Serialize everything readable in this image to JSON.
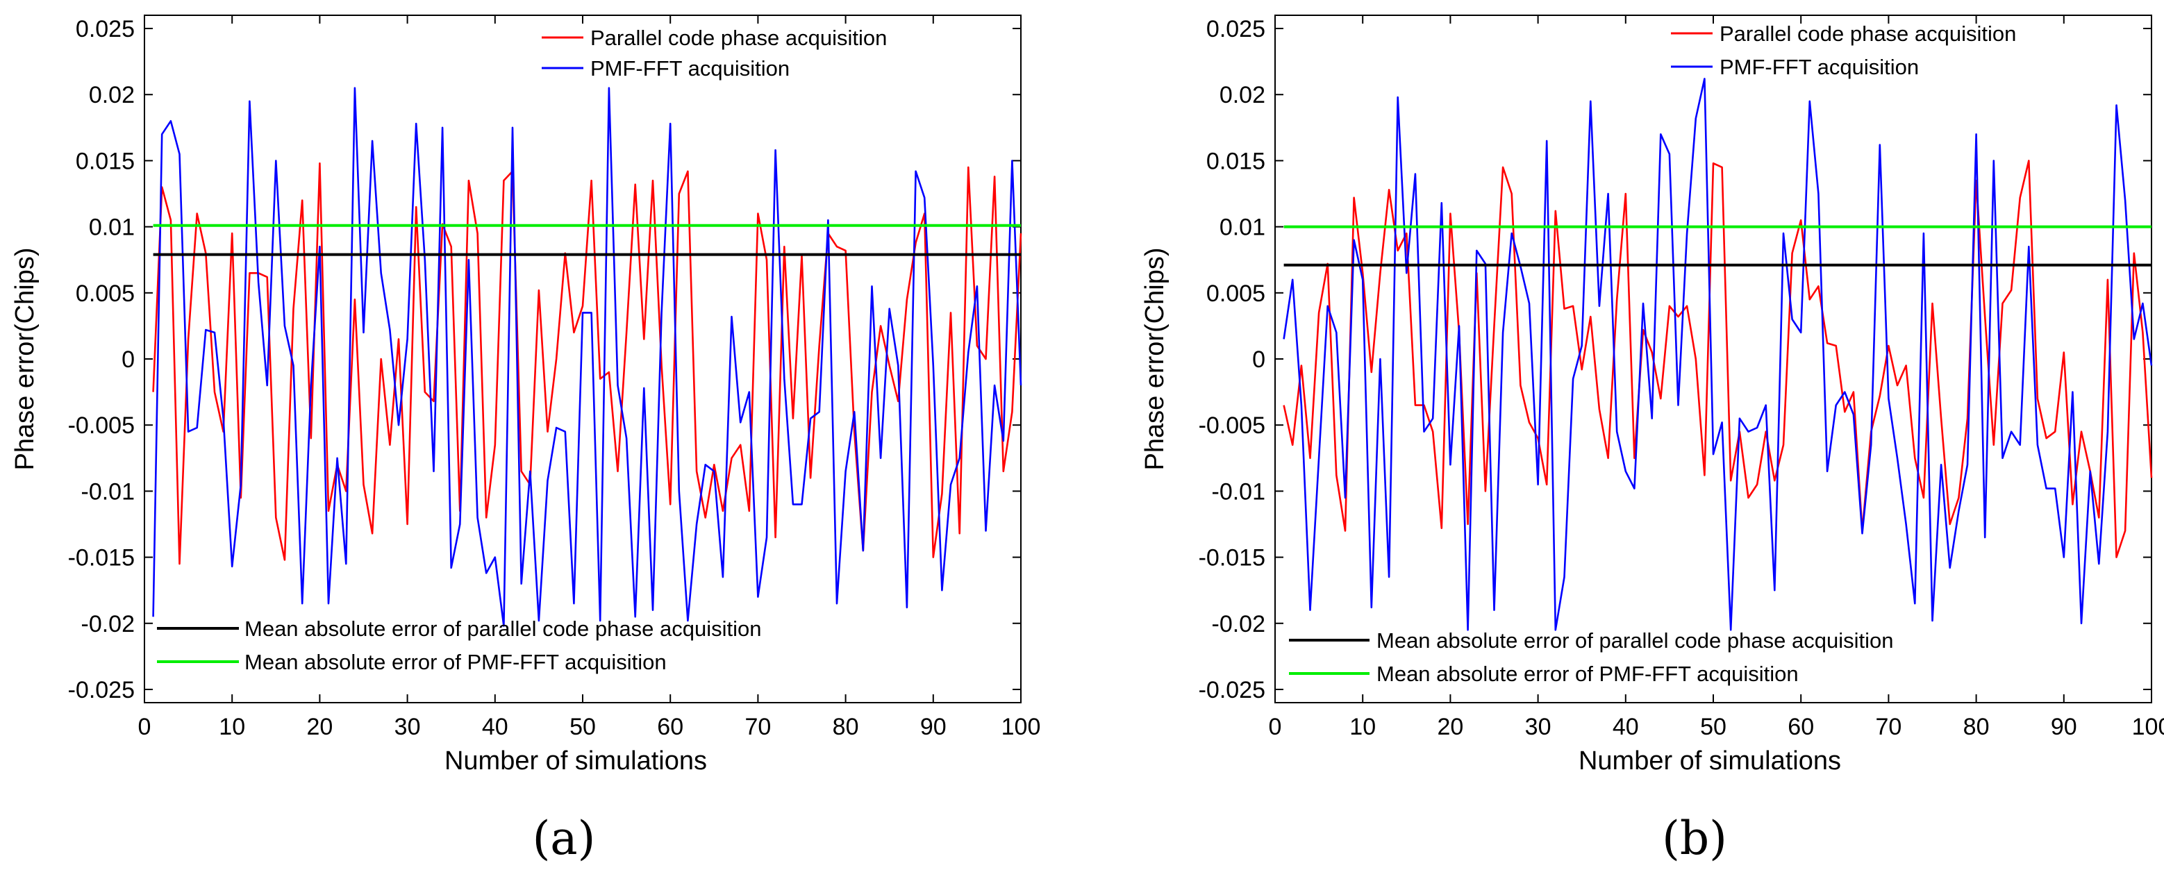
{
  "chart_data": [
    {
      "type": "line",
      "panel_label": "(a)",
      "xlabel": "Number of simulations",
      "ylabel": "Phase error(Chips)",
      "xlim": [
        0,
        100
      ],
      "ylim": [
        -0.026,
        0.026
      ],
      "x_ticks": [
        0,
        10,
        20,
        30,
        40,
        50,
        60,
        70,
        80,
        90,
        100
      ],
      "x_tick_labels": [
        "0",
        "10",
        "20",
        "30",
        "40",
        "50",
        "60",
        "70",
        "80",
        "90",
        "100"
      ],
      "y_ticks": [
        -0.025,
        -0.02,
        -0.015,
        -0.01,
        -0.005,
        0,
        0.005,
        0.01,
        0.015,
        0.02,
        0.025
      ],
      "y_tick_labels": [
        "-0.025",
        "-0.02",
        "-0.015",
        "-0.01",
        "-0.005",
        "0",
        "0.005",
        "0.01",
        "0.015",
        "0.02",
        "0.025"
      ],
      "series": [
        {
          "name": "Parallel code phase acquisition",
          "color": "#ff0000",
          "values": [
            -0.0025,
            0.013,
            0.0105,
            -0.0155,
            0.0015,
            0.011,
            0.008,
            -0.0025,
            -0.0055,
            0.0095,
            -0.0105,
            0.0065,
            0.0065,
            0.0062,
            -0.012,
            -0.0152,
            0.0038,
            0.012,
            -0.006,
            0.0148,
            -0.0115,
            -0.008,
            -0.01,
            0.0045,
            -0.0095,
            -0.0132,
            0.0,
            -0.0065,
            0.0015,
            -0.0125,
            0.0115,
            -0.0025,
            -0.0032,
            0.0102,
            0.0085,
            -0.0115,
            0.0135,
            0.0095,
            -0.012,
            -0.0065,
            0.0135,
            0.0142,
            -0.0085,
            -0.0095,
            0.0052,
            -0.0055,
            0.0,
            0.008,
            0.002,
            0.004,
            0.0135,
            -0.0015,
            -0.001,
            -0.0085,
            0.002,
            0.0132,
            0.0015,
            0.0135,
            -0.0005,
            -0.011,
            0.0125,
            0.0142,
            -0.0085,
            -0.012,
            -0.008,
            -0.0115,
            -0.0075,
            -0.0065,
            -0.0115,
            0.011,
            0.0075,
            -0.0135,
            0.0085,
            -0.0045,
            0.0078,
            -0.009,
            0.001,
            0.0095,
            0.0085,
            0.0082,
            -0.0055,
            -0.0145,
            -0.0025,
            0.0025,
            -0.0005,
            -0.0032,
            0.0045,
            0.0088,
            0.011,
            -0.015,
            -0.0102,
            0.0035,
            -0.0132,
            0.0145,
            0.001,
            0.0,
            0.0138,
            -0.0085,
            -0.004,
            0.0095
          ]
        },
        {
          "name": "PMF-FFT acquisition",
          "color": "#0000ff",
          "values": [
            -0.0195,
            0.017,
            0.018,
            0.0155,
            -0.0055,
            -0.0052,
            0.0022,
            0.002,
            -0.0045,
            -0.0157,
            -0.0095,
            0.0195,
            0.0058,
            -0.002,
            0.015,
            0.0025,
            -0.0005,
            -0.0185,
            -0.002,
            0.0085,
            -0.0185,
            -0.0075,
            -0.0155,
            0.0205,
            0.002,
            0.0165,
            0.0065,
            0.0022,
            -0.005,
            0.0015,
            0.0178,
            0.0075,
            -0.0085,
            0.0175,
            -0.0158,
            -0.0125,
            0.0075,
            -0.012,
            -0.0162,
            -0.015,
            -0.0202,
            0.0175,
            -0.017,
            -0.0085,
            -0.0198,
            -0.0092,
            -0.0052,
            -0.0055,
            -0.0185,
            0.0035,
            0.0035,
            -0.0198,
            0.0205,
            -0.002,
            -0.006,
            -0.0195,
            -0.0022,
            -0.019,
            0.0035,
            0.0178,
            -0.01,
            -0.0198,
            -0.0125,
            -0.008,
            -0.0085,
            -0.0165,
            0.0032,
            -0.0048,
            -0.0025,
            -0.018,
            -0.0135,
            0.0158,
            -0.0015,
            -0.011,
            -0.011,
            -0.0045,
            -0.004,
            0.0105,
            -0.0185,
            -0.0085,
            -0.004,
            -0.0145,
            0.0055,
            -0.0075,
            0.0038,
            -0.0005,
            -0.0188,
            0.0142,
            0.0122,
            -0.0005,
            -0.0175,
            -0.0095,
            -0.0075,
            0.0005,
            0.0055,
            -0.013,
            -0.002,
            -0.0062,
            0.015,
            -0.002
          ]
        },
        {
          "name": "Mean absolute error of parallel code phase acquisition",
          "color": "#000000",
          "values": [
            0.0079,
            0.0079
          ]
        },
        {
          "name": "Mean absolute error of PMF-FFT acquisition",
          "color": "#00ee00",
          "values": [
            0.0101,
            0.0101
          ]
        }
      ]
    },
    {
      "type": "line",
      "panel_label": "(b)",
      "xlabel": "Number of simulations",
      "ylabel": "Phase error(Chips)",
      "xlim": [
        0,
        100
      ],
      "ylim": [
        -0.026,
        0.026
      ],
      "x_ticks": [
        0,
        10,
        20,
        30,
        40,
        50,
        60,
        70,
        80,
        90,
        100
      ],
      "x_tick_labels": [
        "0",
        "10",
        "20",
        "30",
        "40",
        "50",
        "60",
        "70",
        "80",
        "90",
        "100"
      ],
      "y_ticks": [
        -0.025,
        -0.02,
        -0.015,
        -0.01,
        -0.005,
        0,
        0.005,
        0.01,
        0.015,
        0.02,
        0.025
      ],
      "y_tick_labels": [
        "-0.025",
        "-0.02",
        "-0.015",
        "-0.01",
        "-0.005",
        "0",
        "0.005",
        "0.01",
        "0.015",
        "0.02",
        "0.025"
      ],
      "series": [
        {
          "name": "Parallel code phase acquisition",
          "color": "#ff0000",
          "values": [
            -0.0035,
            -0.0065,
            -0.0005,
            -0.0075,
            0.0035,
            0.0072,
            -0.0088,
            -0.013,
            0.0122,
            0.0065,
            -0.001,
            0.0065,
            0.0128,
            0.0082,
            0.0095,
            -0.0035,
            -0.0035,
            -0.0055,
            -0.0128,
            0.011,
            0.002,
            -0.0125,
            0.0065,
            -0.01,
            0.0025,
            0.0145,
            0.0125,
            -0.002,
            -0.0048,
            -0.006,
            -0.0095,
            0.0112,
            0.0038,
            0.004,
            -0.0008,
            0.0032,
            -0.0038,
            -0.0075,
            0.0045,
            0.0125,
            -0.0075,
            0.0022,
            0.0005,
            -0.003,
            0.004,
            0.0032,
            0.004,
            0.0,
            -0.0088,
            0.0148,
            0.0145,
            -0.0092,
            -0.0055,
            -0.0105,
            -0.0095,
            -0.0055,
            -0.0092,
            -0.0065,
            0.008,
            0.0105,
            0.0045,
            0.0055,
            0.0012,
            0.001,
            -0.004,
            -0.0025,
            -0.013,
            -0.0055,
            -0.0028,
            0.001,
            -0.002,
            -0.0005,
            -0.0075,
            -0.0105,
            0.0042,
            -0.0045,
            -0.0125,
            -0.0105,
            -0.0045,
            0.0135,
            0.0032,
            -0.0065,
            0.0042,
            0.0052,
            0.0122,
            0.015,
            -0.003,
            -0.006,
            -0.0055,
            0.0005,
            -0.011,
            -0.0055,
            -0.0085,
            -0.012,
            0.006,
            -0.015,
            -0.013,
            0.008,
            0.002,
            -0.009
          ]
        },
        {
          "name": "PMF-FFT acquisition",
          "color": "#0000ff",
          "values": [
            0.0015,
            0.006,
            -0.0035,
            -0.019,
            -0.0075,
            0.004,
            0.002,
            -0.0105,
            0.009,
            0.006,
            -0.0188,
            0.0,
            -0.0165,
            0.0198,
            0.0065,
            0.014,
            -0.0055,
            -0.0045,
            0.0118,
            -0.008,
            0.0025,
            -0.0205,
            0.0082,
            0.0072,
            -0.019,
            0.002,
            0.0095,
            0.007,
            0.0042,
            -0.0095,
            0.0165,
            -0.0205,
            -0.0165,
            -0.0015,
            0.001,
            0.0195,
            0.004,
            0.0125,
            -0.0055,
            -0.0085,
            -0.0098,
            0.0042,
            -0.0045,
            0.017,
            0.0155,
            -0.0035,
            0.0095,
            0.0182,
            0.0212,
            -0.0072,
            -0.0048,
            -0.0205,
            -0.0045,
            -0.0055,
            -0.0052,
            -0.0035,
            -0.0175,
            0.0095,
            0.003,
            0.002,
            0.0195,
            0.0125,
            -0.0085,
            -0.0035,
            -0.0025,
            -0.0042,
            -0.0132,
            -0.0065,
            0.0162,
            -0.003,
            -0.0075,
            -0.0125,
            -0.0185,
            0.0095,
            -0.0198,
            -0.008,
            -0.0158,
            -0.0115,
            -0.008,
            0.017,
            -0.0135,
            0.015,
            -0.0075,
            -0.0055,
            -0.0065,
            0.0085,
            -0.0065,
            -0.0098,
            -0.0098,
            -0.015,
            -0.0025,
            -0.02,
            -0.0085,
            -0.0155,
            -0.0055,
            0.0192,
            0.012,
            0.0015,
            0.0042,
            -0.0005
          ]
        },
        {
          "name": "Mean absolute error of parallel code phase acquisition",
          "color": "#000000",
          "values": [
            0.0071,
            0.0071
          ]
        },
        {
          "name": "Mean absolute error of PMF-FFT acquisition",
          "color": "#00ee00",
          "values": [
            0.01,
            0.01
          ]
        }
      ]
    }
  ]
}
